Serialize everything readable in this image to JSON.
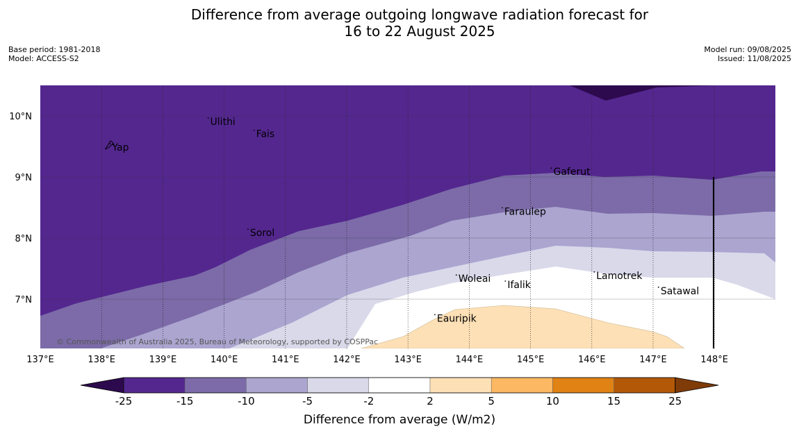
{
  "title_line1": "Difference from average outgoing longwave radiation forecast for",
  "title_line2": "16 to 22 August 2025",
  "base_period": "Base period: 1981-2018",
  "model": "Model: ACCESS-S2",
  "model_run": "Model run: 09/08/2025",
  "issued": "Issued: 11/08/2025",
  "copyright": "© Commonwealth of Australia 2025, Bureau of Meteorology, supported by COSPPac",
  "lon_labels": [
    "137°E",
    "138°E",
    "139°E",
    "140°E",
    "141°E",
    "142°E",
    "143°E",
    "144°E",
    "145°E",
    "146°E",
    "147°E",
    "148°E"
  ],
  "lat_labels": [
    "10°N",
    "9°N",
    "8°N",
    "7°N"
  ],
  "places": [
    {
      "name": "Ulithi",
      "lon": 139.75,
      "lat": 9.92
    },
    {
      "name": "Fais",
      "lon": 140.5,
      "lat": 9.72
    },
    {
      "name": "Yap",
      "lon": 138.15,
      "lat": 9.5
    },
    {
      "name": "Gaferut",
      "lon": 145.35,
      "lat": 9.1
    },
    {
      "name": "Faraulep",
      "lon": 144.55,
      "lat": 8.45
    },
    {
      "name": "Sorol",
      "lon": 140.4,
      "lat": 8.1
    },
    {
      "name": "Lamotrek",
      "lon": 146.05,
      "lat": 7.4
    },
    {
      "name": "Woleai",
      "lon": 143.8,
      "lat": 7.35
    },
    {
      "name": "Ifalik",
      "lon": 144.6,
      "lat": 7.25
    },
    {
      "name": "Satawal",
      "lon": 147.1,
      "lat": 7.15
    },
    {
      "name": "Eauripik",
      "lon": 143.45,
      "lat": 6.7
    }
  ],
  "colorbar": {
    "title": "Difference from average (W/m2)",
    "labels": [
      "-25",
      "-15",
      "-10",
      "-5",
      "-2",
      "2",
      "5",
      "10",
      "15",
      "25"
    ],
    "colors": [
      "#2d0a4e",
      "#54278f",
      "#7c6ba8",
      "#aba5d0",
      "#d9d9ea",
      "#ffffff",
      "#fde0b6",
      "#fdb863",
      "#e08214",
      "#b35806",
      "#7f3b08"
    ]
  }
}
